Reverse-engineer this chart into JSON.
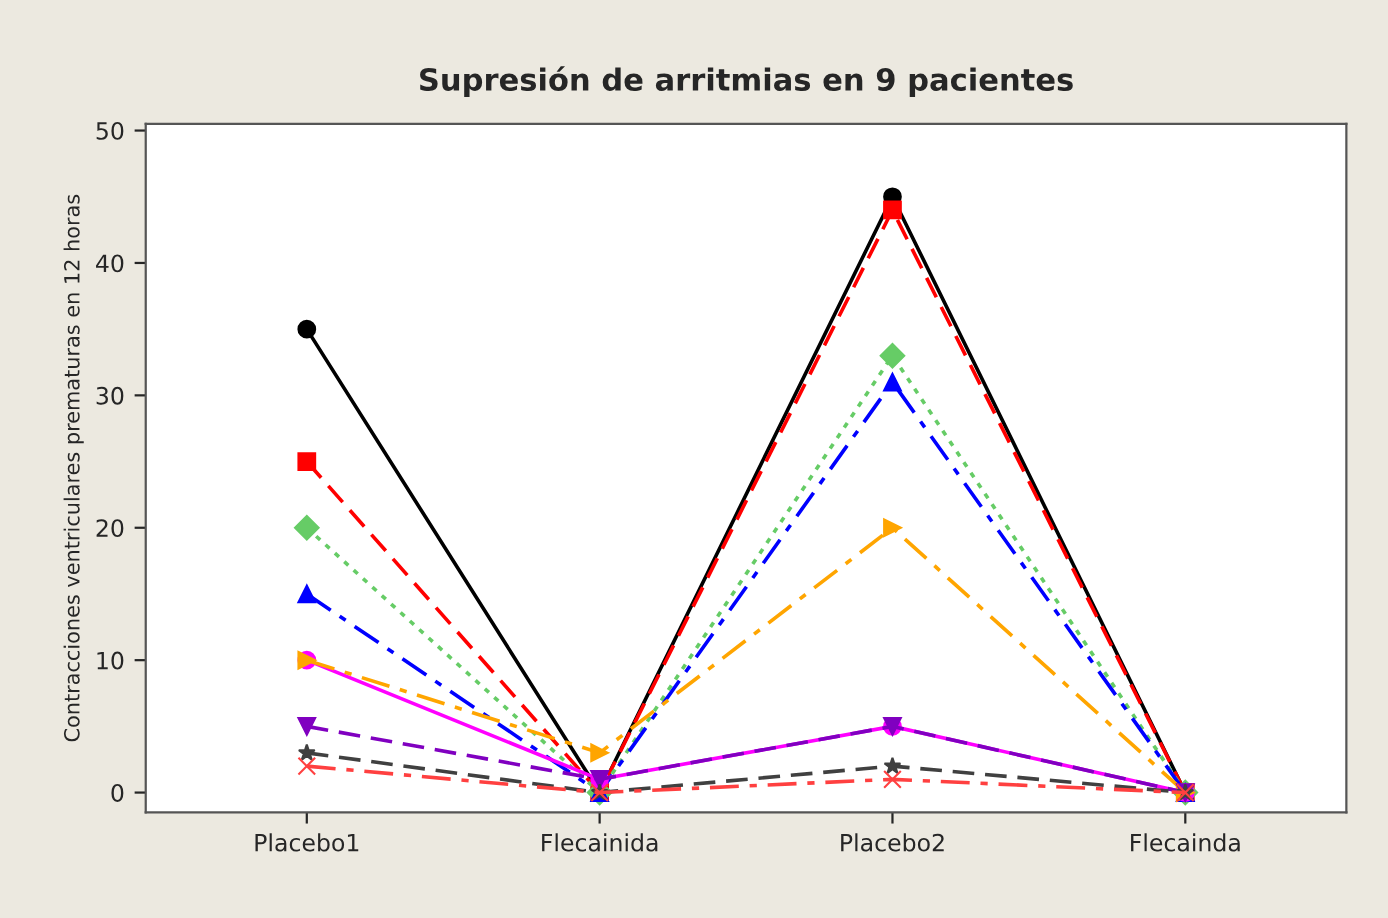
{
  "chart_data": {
    "type": "line",
    "title": "Supresión de arritmias en 9 pacientes",
    "ylabel": "Contracciones ventriculares prematuras en 12 horas",
    "categories": [
      "Placebo1",
      "Flecainida",
      "Placebo2",
      "Flecainda"
    ],
    "ylim": [
      -1.5,
      50.5
    ],
    "yticks": [
      0,
      10,
      20,
      30,
      40,
      50
    ],
    "grid": false,
    "legend": false,
    "series": [
      {
        "color": "#000000",
        "values": [
          35,
          0,
          45,
          0
        ],
        "marker": "circle",
        "line_style": "solid"
      },
      {
        "color": "#ff0000",
        "values": [
          25,
          0,
          44,
          0
        ],
        "marker": "square",
        "line_style": "dashed"
      },
      {
        "color": "#66cc66",
        "values": [
          20,
          0,
          33,
          0
        ],
        "marker": "diamond",
        "line_style": "dotted"
      },
      {
        "color": "#0000ff",
        "values": [
          15,
          0,
          31,
          0
        ],
        "marker": "triangle",
        "line_style": "dashdot"
      },
      {
        "color": "#ff00ff",
        "values": [
          10,
          1,
          5,
          0
        ],
        "marker": "circle",
        "line_style": "solid"
      },
      {
        "color": "#ffa500",
        "values": [
          10,
          3,
          20,
          0
        ],
        "marker": "triangle_right",
        "line_style": "dashdot"
      },
      {
        "color": "#8000c0",
        "values": [
          5,
          1,
          5,
          0
        ],
        "marker": "triangle_down",
        "line_style": "dashed"
      },
      {
        "color": "#404040",
        "values": [
          3,
          0,
          2,
          0
        ],
        "marker": "star",
        "line_style": "dashed"
      },
      {
        "color": "#ff4040",
        "values": [
          2,
          0,
          1,
          0
        ],
        "marker": "cross",
        "line_style": "dashdot"
      }
    ]
  }
}
